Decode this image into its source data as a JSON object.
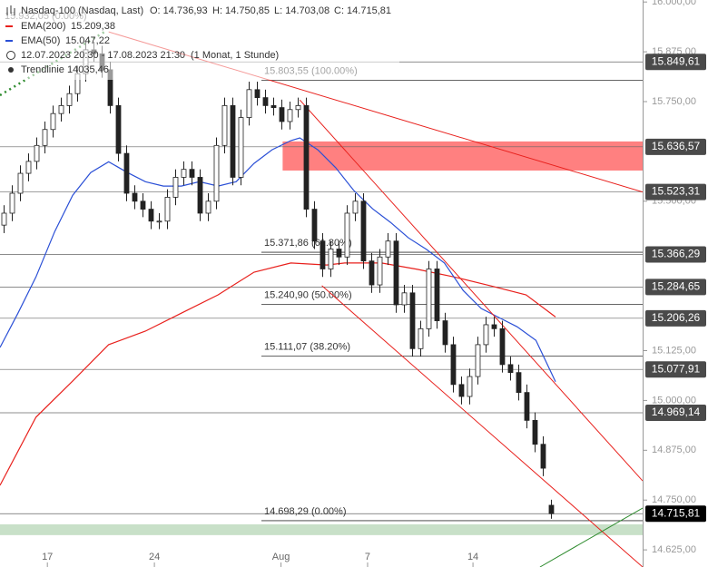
{
  "chart_data": {
    "type": "candlestick",
    "title": "Nasdaq-100 (Nasdaq, Last)",
    "header": {
      "open": "O: 14.736,93",
      "high": "H: 14.750,85",
      "low": "L: 14.703,08",
      "close": "C: 14.715,81",
      "ema200_value": "15.209,38",
      "ema50_value": "15.047,22",
      "period": "12.07.2023 20:30 - 17.08.2023 21:30",
      "interval": "(1 Monat, 1 Stunde)",
      "trendline_name": "Trendlinie",
      "trendline_value": "14035,46",
      "faded_label": "15.932,05 (0.00%)"
    },
    "xlim": [
      -0.5,
      78.17
    ],
    "ylim": [
      14582,
      16005
    ],
    "xticks": [
      {
        "value": 5.3,
        "label": "17"
      },
      {
        "value": 18.4,
        "label": "24"
      },
      {
        "value": 33.9,
        "label": "Aug"
      },
      {
        "value": 44.5,
        "label": "7"
      },
      {
        "value": 57.4,
        "label": "14"
      }
    ],
    "yticks": [
      {
        "value": 16000,
        "label": "16.000,00"
      },
      {
        "value": 15875,
        "label": "15.875,00"
      },
      {
        "value": 15750,
        "label": "15.750,00"
      },
      {
        "value": 15500,
        "label": "15.500,00"
      },
      {
        "value": 15125,
        "label": "15.125,00"
      },
      {
        "value": 15000,
        "label": "15.000,00"
      },
      {
        "value": 14875,
        "label": "14.875,00"
      },
      {
        "value": 14750,
        "label": "14.750,00"
      },
      {
        "value": 14625,
        "label": "14.625,00"
      }
    ],
    "candles": {
      "x": [
        0,
        1,
        2,
        3,
        4,
        5,
        6,
        7,
        8,
        9,
        10,
        11,
        12,
        13,
        14,
        15,
        16,
        17,
        18,
        19,
        20,
        21,
        22,
        23,
        24,
        25,
        26,
        27,
        28,
        29,
        30,
        31,
        32,
        33,
        34,
        35,
        36,
        37,
        38,
        39,
        40,
        41,
        42,
        43,
        44,
        45,
        46,
        47,
        48,
        49,
        50,
        51,
        52,
        53,
        54,
        55,
        56,
        57,
        58,
        59,
        60,
        61,
        62,
        63,
        64,
        65,
        66,
        67
      ],
      "open": [
        15440,
        15470,
        15520,
        15570,
        15600,
        15640,
        15680,
        15720,
        15740,
        15770,
        15820,
        15880,
        15870,
        15830,
        15740,
        15620,
        15520,
        15500,
        15480,
        15450,
        15450,
        15510,
        15560,
        15580,
        15560,
        15470,
        15500,
        15640,
        15740,
        15560,
        15710,
        15780,
        15760,
        15740,
        15735,
        15700,
        15730,
        15740,
        15480,
        15400,
        15330,
        15380,
        15360,
        15470,
        15500,
        15350,
        15290,
        15360,
        15400,
        15240,
        15270,
        15130,
        15180,
        15330,
        15200,
        15140,
        15040,
        15010,
        15060,
        15140,
        15190,
        15180,
        15090,
        15070,
        15020,
        14950,
        14890,
        14736.93
      ],
      "high": [
        15490,
        15540,
        15590,
        15620,
        15660,
        15700,
        15740,
        15760,
        15790,
        15840,
        15900,
        15900,
        15890,
        15850,
        15760,
        15640,
        15540,
        15520,
        15500,
        15470,
        15530,
        15580,
        15600,
        15600,
        15580,
        15520,
        15660,
        15760,
        15760,
        15730,
        15800,
        15800,
        15780,
        15760,
        15755,
        15750,
        15760,
        15760,
        15500,
        15420,
        15400,
        15400,
        15490,
        15520,
        15520,
        15370,
        15380,
        15420,
        15420,
        15290,
        15290,
        15200,
        15350,
        15350,
        15220,
        15160,
        15060,
        15080,
        15160,
        15210,
        15210,
        15200,
        15110,
        15090,
        15040,
        14970,
        14910,
        14750.85
      ],
      "low": [
        15420,
        15450,
        15500,
        15550,
        15580,
        15620,
        15660,
        15700,
        15720,
        15750,
        15800,
        15850,
        15810,
        15720,
        15600,
        15500,
        15480,
        15460,
        15430,
        15430,
        15430,
        15490,
        15540,
        15540,
        15450,
        15450,
        15480,
        15620,
        15540,
        15540,
        15690,
        15740,
        15720,
        15715,
        15680,
        15680,
        15710,
        15460,
        15380,
        15310,
        15310,
        15340,
        15340,
        15450,
        15330,
        15270,
        15270,
        15340,
        15220,
        15220,
        15110,
        15110,
        15160,
        15180,
        15120,
        15020,
        14990,
        14990,
        15040,
        15120,
        15160,
        15070,
        15050,
        15000,
        14930,
        14870,
        14810,
        14703.08
      ],
      "close": [
        15470,
        15520,
        15570,
        15600,
        15640,
        15680,
        15720,
        15740,
        15770,
        15820,
        15880,
        15870,
        15830,
        15740,
        15620,
        15520,
        15500,
        15480,
        15450,
        15450,
        15510,
        15560,
        15580,
        15560,
        15470,
        15500,
        15640,
        15740,
        15560,
        15710,
        15780,
        15760,
        15740,
        15735,
        15700,
        15730,
        15740,
        15480,
        15400,
        15330,
        15380,
        15360,
        15470,
        15500,
        15350,
        15290,
        15360,
        15400,
        15240,
        15270,
        15130,
        15180,
        15330,
        15200,
        15140,
        15040,
        15010,
        15060,
        15140,
        15190,
        15180,
        15090,
        15070,
        15020,
        14950,
        14890,
        14830,
        14715.81
      ]
    },
    "series": [
      {
        "name": "EMA(200)",
        "color": "#e8201c",
        "x": [
          -0.5,
          3.9,
          8.4,
          12.8,
          17.3,
          21.7,
          26.2,
          30.6,
          35.1,
          39.5,
          41.7,
          46.2,
          50.6,
          55.1,
          59.5,
          63.9,
          67.5
        ],
        "values": [
          14787,
          14958,
          15049,
          15140,
          15174,
          15219,
          15265,
          15322,
          15345,
          15340,
          15345,
          15345,
          15329,
          15310,
          15288,
          15265,
          15209.38
        ]
      },
      {
        "name": "EMA(50)",
        "color": "#2a4fd6",
        "x": [
          -0.5,
          1.7,
          3.9,
          6.2,
          8.4,
          10.6,
          12.8,
          15.1,
          17.3,
          19.5,
          21.7,
          23.9,
          26.2,
          28.4,
          30.6,
          32.8,
          35.1,
          36.2,
          38.4,
          40.6,
          42.8,
          45.1,
          47.3,
          49.5,
          51.7,
          53.9,
          56.2,
          58.4,
          60.6,
          62.8,
          65.1,
          67.5
        ],
        "values": [
          15133,
          15219,
          15310,
          15424,
          15515,
          15572,
          15599,
          15572,
          15549,
          15538,
          15538,
          15549,
          15538,
          15549,
          15595,
          15629,
          15652,
          15659,
          15629,
          15584,
          15527,
          15481,
          15447,
          15408,
          15379,
          15345,
          15276,
          15231,
          15208,
          15185,
          15151,
          15047.22
        ]
      }
    ],
    "trendlines": [
      {
        "color": "#e8201c",
        "x": [
          12.8,
          78.17
        ],
        "y": [
          15925,
          15523
        ]
      },
      {
        "color": "#e8201c",
        "x": [
          36.2,
          78.17
        ],
        "y": [
          15754,
          14798
        ]
      },
      {
        "color": "#e8201c",
        "x": [
          38.9,
          78.17
        ],
        "y": [
          15288,
          14582
        ]
      },
      {
        "color": "#2e8b2e",
        "x": [
          65.6,
          78.17
        ],
        "y": [
          14582,
          14730
        ]
      },
      {
        "color": "#2e8b2e",
        "x": [
          -0.5,
          12.3
        ],
        "y": [
          15766,
          15925
        ],
        "dashed": true
      }
    ],
    "zone": {
      "color": "#ff8080",
      "x_start": 34.1,
      "low": 15577,
      "high": 15650
    },
    "band": {
      "color": "#c8e0c8",
      "low": 14662,
      "high": 14689
    },
    "fib_start": 31.5,
    "fib_levels": [
      {
        "value": 15803.55,
        "label": "15.803,55 (100.00%)"
      },
      {
        "value": 15371.86,
        "label": "15.371,86 (61.80%)"
      },
      {
        "value": 15240.9,
        "label": "15.240,90 (50.00%)"
      },
      {
        "value": 15111.07,
        "label": "15.111,07 (38.20%)"
      },
      {
        "value": 14698.29,
        "label": "14.698,29 (0.00%)"
      }
    ],
    "levels": [
      {
        "value": 15849.61,
        "label": "15.849,61"
      },
      {
        "value": 15636.57,
        "label": "15.636,57"
      },
      {
        "value": 15523.31,
        "label": "15.523,31"
      },
      {
        "value": 15366.29,
        "label": "15.366,29"
      },
      {
        "value": 15284.65,
        "label": "15.284,65"
      },
      {
        "value": 15206.26,
        "label": "15.206,26"
      },
      {
        "value": 15077.91,
        "label": "15.077,91"
      },
      {
        "value": 14969.14,
        "label": "14.969,14"
      },
      {
        "value": 14715.81,
        "label": "14.715,81",
        "current": true
      }
    ]
  }
}
